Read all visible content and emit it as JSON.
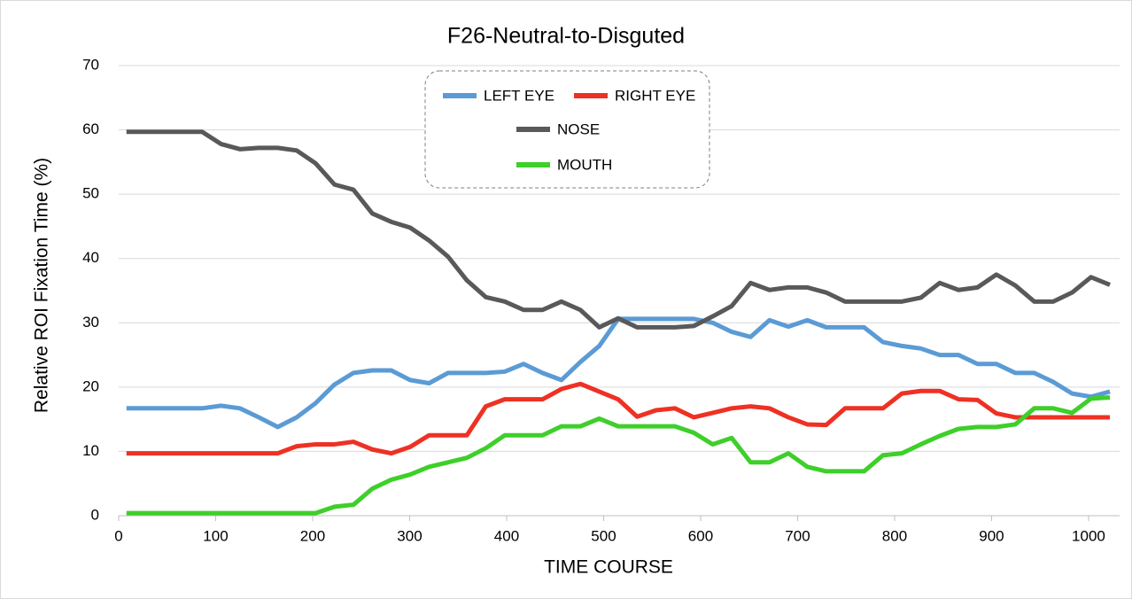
{
  "chart_data": {
    "type": "line",
    "title": "F26-Neutral-to-Disguted",
    "x_label": "TIME  COURSE",
    "y_label": "Relative  ROI  Fixation  Time  (%)",
    "x": [
      8,
      27.5,
      47,
      66.5,
      86,
      105.5,
      125,
      144.5,
      164,
      183.5,
      203,
      222.5,
      242,
      261.5,
      281,
      300.5,
      320,
      339.5,
      359,
      378.5,
      398,
      417.5,
      437,
      456.5,
      476,
      495.5,
      515,
      534.5,
      554,
      573.5,
      593,
      612.5,
      632,
      651.5,
      671,
      690.5,
      710,
      729.5,
      749,
      768.5,
      788,
      807.5,
      827,
      846.5,
      866,
      885.5,
      905,
      924.5,
      944,
      963.5,
      983,
      1002.5,
      1022
    ],
    "series": [
      {
        "name": "LEFT EYE",
        "color": "#5b9bd5",
        "values": [
          16.7,
          16.7,
          16.7,
          16.7,
          16.7,
          17.1,
          16.7,
          15.3,
          13.8,
          15.3,
          17.5,
          20.4,
          22.2,
          22.6,
          22.6,
          21.1,
          20.6,
          22.2,
          22.2,
          22.2,
          22.4,
          23.6,
          22.2,
          21.1,
          23.9,
          26.4,
          30.6,
          30.6,
          30.6,
          30.6,
          30.6,
          30,
          28.6,
          27.8,
          30.4,
          29.4,
          30.4,
          29.3,
          29.3,
          29.3,
          27,
          26.4,
          26,
          25,
          25,
          23.6,
          23.6,
          22.2,
          22.2,
          20.8,
          19,
          18.5,
          19.3
        ]
      },
      {
        "name": "RIGHT EYE",
        "color": "#ee3124",
        "values": [
          9.7,
          9.7,
          9.7,
          9.7,
          9.7,
          9.7,
          9.7,
          9.7,
          9.7,
          10.8,
          11.1,
          11.1,
          11.5,
          10.3,
          9.7,
          10.7,
          12.5,
          12.5,
          12.5,
          17,
          18.1,
          18.1,
          18.1,
          19.7,
          20.5,
          19.3,
          18.1,
          15.4,
          16.4,
          16.7,
          15.3,
          16,
          16.7,
          17,
          16.7,
          15.3,
          14.2,
          14.1,
          16.7,
          16.7,
          16.7,
          19,
          19.4,
          19.4,
          18.1,
          18,
          15.9,
          15.3,
          15.3,
          15.3,
          15.3,
          15.3,
          15.3
        ]
      },
      {
        "name": "NOSE",
        "color": "#595959",
        "values": [
          59.7,
          59.7,
          59.7,
          59.7,
          59.7,
          57.8,
          57,
          57.2,
          57.2,
          56.8,
          54.8,
          51.5,
          50.7,
          47,
          45.7,
          44.8,
          42.8,
          40.3,
          36.6,
          34,
          33.3,
          32,
          32,
          33.3,
          32,
          29.3,
          30.7,
          29.3,
          29.3,
          29.3,
          29.5,
          31,
          32.6,
          36.2,
          35.1,
          35.5,
          35.5,
          34.7,
          33.3,
          33.3,
          33.3,
          33.3,
          33.9,
          36.2,
          35.1,
          35.5,
          37.5,
          35.8,
          33.3,
          33.3,
          34.7,
          37.1,
          35.9
        ]
      },
      {
        "name": "MOUTH",
        "color": "#3ecf2a",
        "values": [
          0.4,
          0.4,
          0.4,
          0.4,
          0.4,
          0.4,
          0.4,
          0.4,
          0.4,
          0.4,
          0.4,
          1.4,
          1.7,
          4.2,
          5.6,
          6.4,
          7.6,
          8.3,
          9,
          10.5,
          12.5,
          12.5,
          12.5,
          13.9,
          13.9,
          15.1,
          13.9,
          13.9,
          13.9,
          13.9,
          12.9,
          11.1,
          12.1,
          8.3,
          8.3,
          9.7,
          7.6,
          6.9,
          6.9,
          6.9,
          9.4,
          9.7,
          11.1,
          12.4,
          13.5,
          13.8,
          13.8,
          14.2,
          16.7,
          16.7,
          16,
          18.2,
          18.4
        ]
      }
    ],
    "xlim": [
      0,
      1032
    ],
    "xticks": [
      0,
      100,
      200,
      300,
      400,
      500,
      600,
      700,
      800,
      900,
      1000
    ],
    "ylim": [
      0,
      70
    ],
    "yticks": [
      0,
      10,
      20,
      30,
      40,
      50,
      60,
      70
    ],
    "grid": true,
    "legend": "top"
  }
}
